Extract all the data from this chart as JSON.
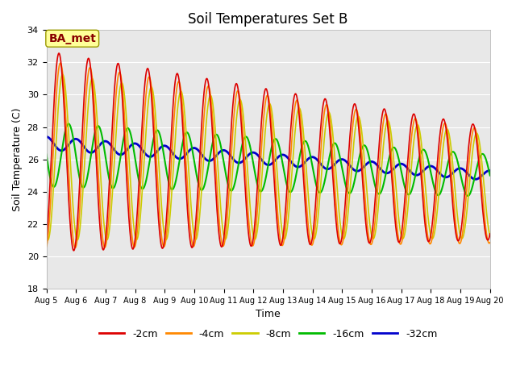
{
  "title": "Soil Temperatures Set B",
  "xlabel": "Time",
  "ylabel": "Soil Temperature (C)",
  "ylim": [
    18,
    34
  ],
  "yticks": [
    18,
    20,
    22,
    24,
    26,
    28,
    30,
    32,
    34
  ],
  "x_tick_labels": [
    "Aug 5",
    "Aug 6",
    "Aug 7",
    "Aug 8",
    "Aug 9",
    "Aug 10",
    "Aug 11",
    "Aug 12",
    "Aug 13",
    "Aug 14",
    "Aug 15",
    "Aug 16",
    "Aug 17",
    "Aug 18",
    "Aug 19",
    "Aug 20"
  ],
  "legend_labels": [
    "-2cm",
    "-4cm",
    "-8cm",
    "-16cm",
    "-32cm"
  ],
  "legend_colors": [
    "#dd0000",
    "#ff8800",
    "#cccc00",
    "#00bb00",
    "#0000cc"
  ],
  "line_widths": [
    1.2,
    1.2,
    1.2,
    1.5,
    2.0
  ],
  "bg_color": "#e8e8e8",
  "annotation_text": "BA_met",
  "annotation_color": "#880000",
  "annotation_bg": "#ffff99",
  "title_fontsize": 12,
  "axis_fontsize": 9
}
